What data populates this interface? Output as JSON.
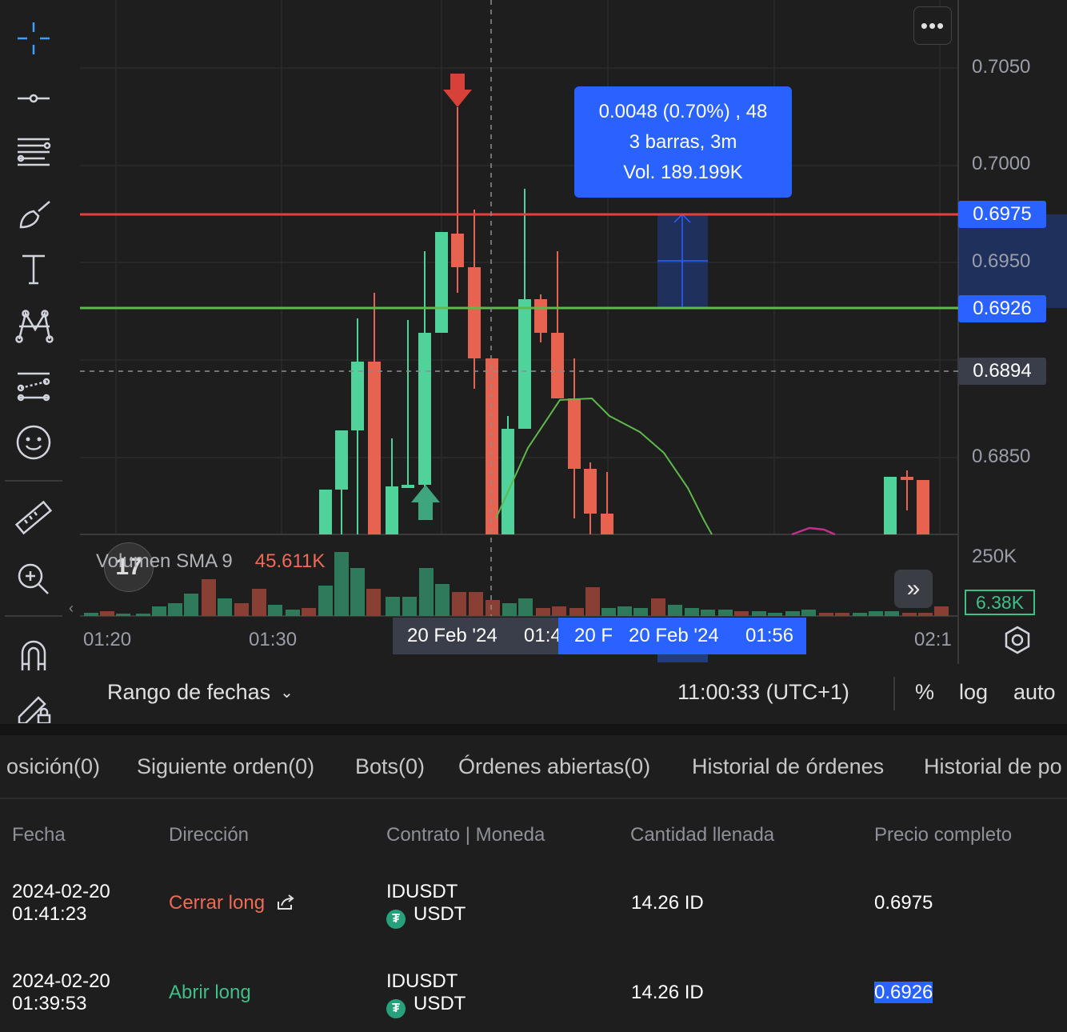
{
  "chart": {
    "price_axis": [
      "0.7050",
      "0.7000",
      "0.6950",
      "0.6850"
    ],
    "badges": {
      "close_price": "0.6975",
      "open_price": "0.6926",
      "current_price": "0.6894"
    },
    "tooltip": {
      "line1": "0.0048 (0.70%) , 48",
      "line2": "3 barras, 3m",
      "line3": "Vol. 189.199K"
    },
    "volume": {
      "legend_label": "Volumen SMA 9",
      "legend_value": "45.611K",
      "axis_label": "250K",
      "badge": "6.38K"
    },
    "time_axis": [
      "01:20",
      "01:30",
      "02:1"
    ],
    "crosshair_dark": "20 Feb '24     01:4",
    "crosshair_blue": "20 F   20 Feb '24     01:56",
    "colors": {
      "up": "#4fd39a",
      "down": "#e8634f",
      "close_line": "#e5403d",
      "open_line": "#5fb84d",
      "accent": "#2962ff"
    }
  },
  "bottom_bar": {
    "date_range": "Rango de fechas",
    "clock": "11:00:33 (UTC+1)",
    "percent": "%",
    "log": "log",
    "auto": "auto"
  },
  "tabs": [
    "osición(0)",
    "Siguiente orden(0)",
    "Bots(0)",
    "Órdenes abiertas(0)",
    "Historial de órdenes",
    "Historial de po"
  ],
  "table": {
    "headers": [
      "Fecha",
      "Dirección",
      "Contrato | Moneda",
      "Cantidad llenada",
      "Precio completo"
    ],
    "rows": [
      {
        "date": "2024-02-20",
        "time": "01:41:23",
        "direction": "Cerrar long",
        "contract": "IDUSDT",
        "currency": "USDT",
        "qty": "14.26 ID",
        "price": "0.6975"
      },
      {
        "date": "2024-02-20",
        "time": "01:39:53",
        "direction": "Abrir long",
        "contract": "IDUSDT",
        "currency": "USDT",
        "qty": "14.26 ID",
        "price": "0.6926"
      }
    ]
  }
}
